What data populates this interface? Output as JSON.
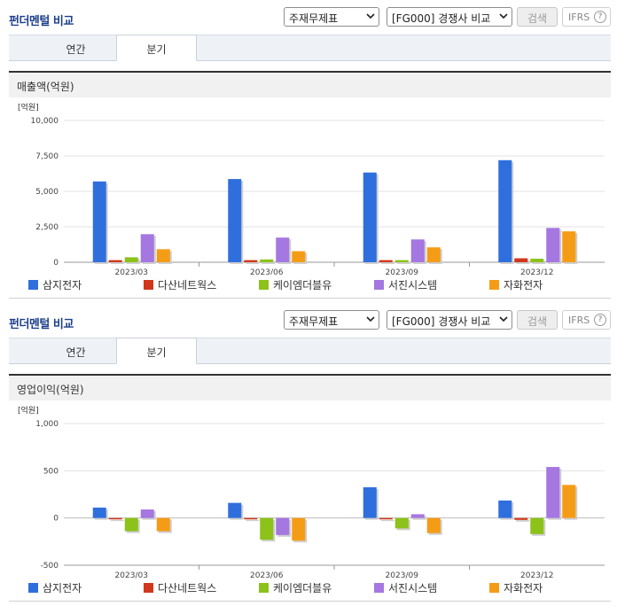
{
  "panels": [
    {
      "header": {
        "title": "펀더멘털 비교",
        "select1": "주재무제표",
        "select2": "[FG000] 경쟁사 비교",
        "search_label": "검색",
        "ifrs_label": "IFRS",
        "help_label": "?"
      },
      "tabs": [
        {
          "label": "연간"
        },
        {
          "label": "분기"
        }
      ],
      "active_tab": 1,
      "metric_title": "매출액(억원)",
      "chart_data": {
        "type": "bar",
        "unit_label": "[억원]",
        "categories": [
          "2023/03",
          "2023/06",
          "2023/09",
          "2023/12"
        ],
        "ylim": [
          0,
          10000
        ],
        "yticks": [
          0,
          2500,
          5000,
          7500,
          10000
        ],
        "ytick_labels": [
          "0",
          "2,500",
          "5,000",
          "7,500",
          "10,000"
        ],
        "grid": true,
        "legend_position": "bottom",
        "series": [
          {
            "name": "삼지전자",
            "color": "#2f6fdd",
            "values": [
              5700,
              5870,
              6330,
              7200
            ]
          },
          {
            "name": "다산네트웍스",
            "color": "#d2371c",
            "values": [
              150,
              150,
              150,
              280
            ]
          },
          {
            "name": "케이엠더블유",
            "color": "#8cc21a",
            "values": [
              350,
              200,
              150,
              250
            ]
          },
          {
            "name": "서진시스템",
            "color": "#a577e0",
            "values": [
              1980,
              1740,
              1610,
              2420
            ]
          },
          {
            "name": "자화전자",
            "color": "#f59c16",
            "values": [
              920,
              780,
              1050,
              2180
            ]
          }
        ]
      }
    },
    {
      "header": {
        "title": "펀더멘털 비교",
        "select1": "주재무제표",
        "select2": "[FG000] 경쟁사 비교",
        "search_label": "검색",
        "ifrs_label": "IFRS",
        "help_label": "?"
      },
      "tabs": [
        {
          "label": "연간"
        },
        {
          "label": "분기"
        }
      ],
      "active_tab": 1,
      "metric_title": "영업이익(억원)",
      "chart_data": {
        "type": "bar",
        "unit_label": "[억원]",
        "categories": [
          "2023/03",
          "2023/06",
          "2023/09",
          "2023/12"
        ],
        "ylim": [
          -500,
          1000
        ],
        "yticks": [
          -500,
          0,
          500,
          1000
        ],
        "ytick_labels": [
          "-500",
          "0",
          "500",
          "1,000"
        ],
        "grid": true,
        "legend_position": "bottom",
        "series": [
          {
            "name": "삼지전자",
            "color": "#2f6fdd",
            "values": [
              110,
              160,
              325,
              185
            ]
          },
          {
            "name": "다산네트웍스",
            "color": "#d2371c",
            "values": [
              -10,
              -10,
              0,
              -20
            ]
          },
          {
            "name": "케이엠더블유",
            "color": "#8cc21a",
            "values": [
              -140,
              -230,
              -110,
              -170
            ]
          },
          {
            "name": "서진시스템",
            "color": "#a577e0",
            "values": [
              90,
              -180,
              40,
              540
            ]
          },
          {
            "name": "자화전자",
            "color": "#f59c16",
            "values": [
              -140,
              -240,
              -160,
              350
            ]
          }
        ]
      }
    }
  ]
}
